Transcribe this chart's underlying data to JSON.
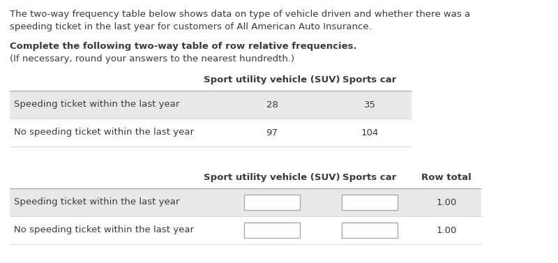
{
  "bg_color": "#ffffff",
  "text_color": "#3a3a3a",
  "intro_text_line1": "The two-way frequency table below shows data on type of vehicle driven and whether there was a",
  "intro_text_line2": "speeding ticket in the last year for customers of All American Auto Insurance.",
  "bold_text_line1": "Complete the following two-way table of row relative frequencies.",
  "normal_text_line2": "(If necessary, round your answers to the nearest hundredth.)",
  "table1_col_headers": [
    "Sport utility vehicle (SUV)",
    "Sports car"
  ],
  "table1_row_labels": [
    "Speeding ticket within the last year",
    "No speeding ticket within the last year"
  ],
  "table1_data": [
    [
      "28",
      "35"
    ],
    [
      "97",
      "104"
    ]
  ],
  "table1_row_bg": [
    "#e8e8e8",
    "#ffffff"
  ],
  "table2_col_headers": [
    "Sport utility vehicle (SUV)",
    "Sports car",
    "Row total"
  ],
  "table2_row_labels": [
    "Speeding ticket within the last year",
    "No speeding ticket within the last year"
  ],
  "table2_row_totals": [
    "1.00",
    "1.00"
  ],
  "table2_row_bg": [
    "#e8e8e8",
    "#ffffff"
  ],
  "font_size": 9.5
}
